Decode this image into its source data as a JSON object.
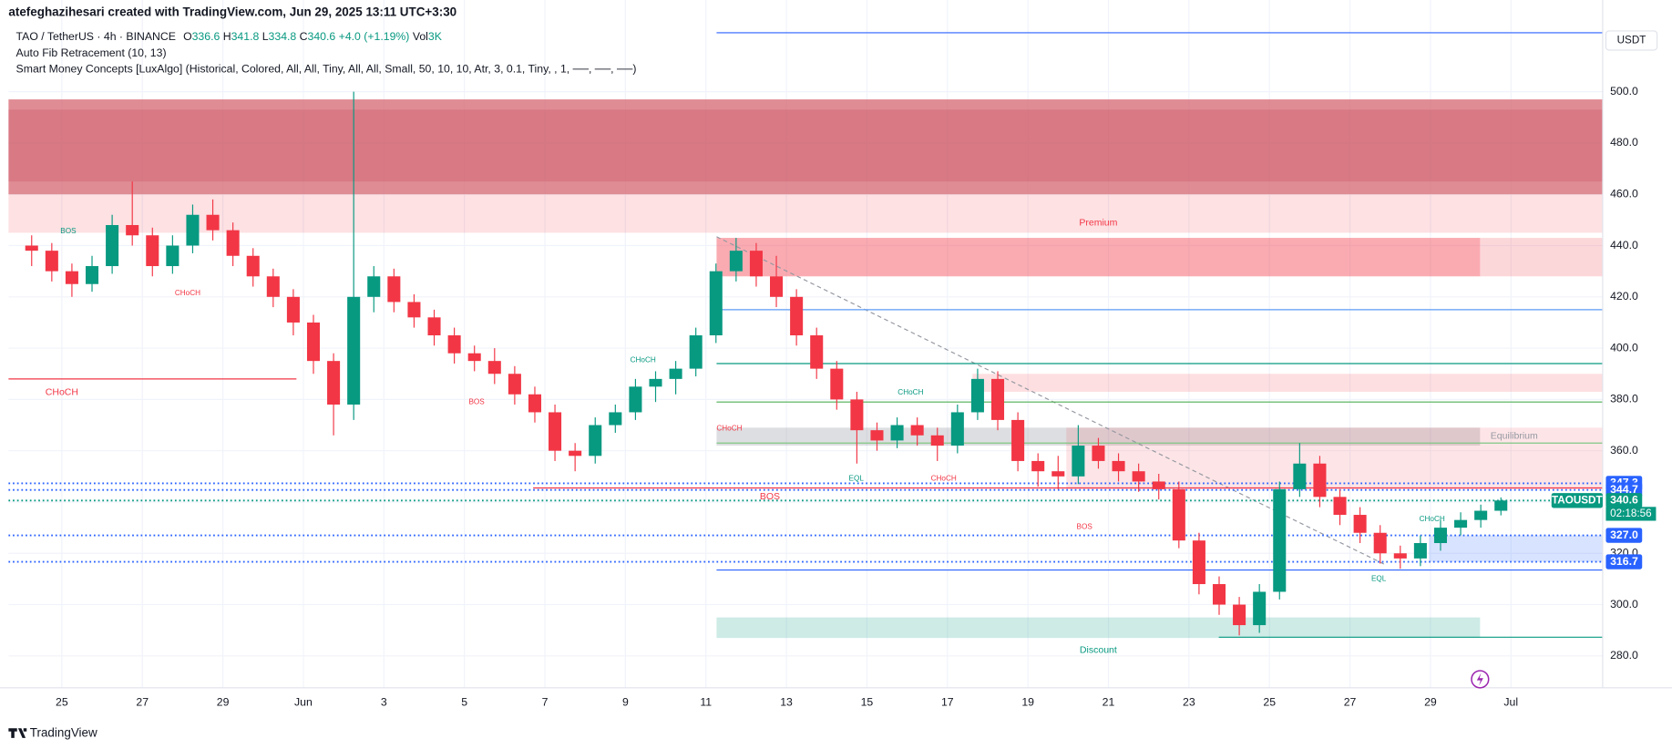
{
  "chart_data": {
    "type": "candlestick",
    "credit": "atefeghazihesari created with TradingView.com, Jun 29, 2025 13:11 UTC+3:30",
    "symbol": "TAO / TetherUS · 4h · BINANCE",
    "ohlc_header": {
      "o_label": "O",
      "o": "336.6",
      "h_label": "H",
      "h": "341.8",
      "l_label": "L",
      "l": "334.8",
      "c_label": "C",
      "c": "340.6",
      "change": "+4.0 (+1.19%)",
      "vol_label": "Vol",
      "vol": "3K"
    },
    "indicators": [
      "Auto Fib Retracement (10, 13)",
      "Smart Money Concepts [LuxAlgo] (Historical, Colored, All, All, Tiny, All, All, Small, 50, 10, 10, Atr, 3, 0.1, Tiny, , 1, ──, ──, ──)"
    ],
    "currency": "USDT",
    "branding": "TradingView",
    "up_color": "#089981",
    "down_color": "#f23645",
    "ylim": [
      270,
      530
    ],
    "yticks": [
      {
        "value": 280,
        "label": "280.0"
      },
      {
        "value": 300,
        "label": "300.0"
      },
      {
        "value": 320,
        "label": "320.0"
      },
      {
        "value": 340,
        "label": "340.0"
      },
      {
        "value": 360,
        "label": "360.0"
      },
      {
        "value": 380,
        "label": "380.0"
      },
      {
        "value": 400,
        "label": "400.0"
      },
      {
        "value": 420,
        "label": "420.0"
      },
      {
        "value": 440,
        "label": "440.0"
      },
      {
        "value": 460,
        "label": "460.0"
      },
      {
        "value": 480,
        "label": "480.0"
      },
      {
        "value": 500,
        "label": "500.0"
      }
    ],
    "x_labels": [
      "25",
      "27",
      "29",
      "Jun",
      "3",
      "5",
      "7",
      "9",
      "11",
      "13",
      "15",
      "17",
      "19",
      "21",
      "23",
      "25",
      "27",
      "29",
      "Jul"
    ],
    "grid": true,
    "open": [
      440,
      438,
      430,
      425,
      432,
      448,
      444,
      432,
      440,
      452,
      446,
      436,
      428,
      420,
      410,
      395,
      378,
      420,
      428,
      418,
      412,
      405,
      398,
      395,
      390,
      382,
      375,
      360,
      358,
      370,
      375,
      385,
      388,
      392,
      405,
      430,
      438,
      428,
      420,
      405,
      392,
      380,
      368,
      364,
      370,
      366,
      362,
      375,
      388,
      372,
      356,
      352,
      350,
      362,
      356,
      352,
      348,
      345,
      325,
      308,
      300,
      292,
      305,
      345,
      355,
      342,
      335,
      328,
      320,
      318,
      324,
      330,
      333,
      336.6
    ],
    "high": [
      444,
      441,
      433,
      436,
      452,
      465,
      447,
      444,
      456,
      458,
      449,
      439,
      431,
      423,
      413,
      398,
      500,
      432,
      431,
      421,
      415,
      408,
      401,
      400,
      393,
      385,
      378,
      363,
      373,
      378,
      388,
      391,
      395,
      408,
      433,
      443,
      441,
      436,
      423,
      408,
      395,
      383,
      371,
      373,
      373,
      369,
      378,
      392,
      391,
      375,
      359,
      358,
      370,
      365,
      359,
      355,
      351,
      348,
      328,
      311,
      303,
      308,
      348,
      363,
      358,
      345,
      338,
      331,
      323,
      327,
      333,
      336,
      339,
      341.8
    ],
    "low": [
      432,
      426,
      420,
      422,
      429,
      440,
      428,
      429,
      437,
      442,
      432,
      424,
      416,
      405,
      390,
      366,
      372,
      414,
      414,
      408,
      401,
      394,
      391,
      386,
      378,
      371,
      356,
      352,
      355,
      367,
      372,
      379,
      382,
      389,
      402,
      426,
      424,
      416,
      401,
      388,
      376,
      355,
      360,
      361,
      362,
      356,
      359,
      372,
      368,
      352,
      346,
      345,
      347,
      353,
      348,
      344,
      341,
      322,
      304,
      296,
      288,
      289,
      302,
      342,
      338,
      331,
      324,
      316,
      314,
      315,
      321,
      327,
      330,
      334.8
    ],
    "close": [
      438,
      430,
      425,
      432,
      448,
      444,
      432,
      440,
      452,
      446,
      436,
      428,
      420,
      410,
      395,
      378,
      420,
      428,
      418,
      412,
      405,
      398,
      395,
      390,
      382,
      375,
      360,
      358,
      370,
      375,
      385,
      388,
      392,
      405,
      430,
      438,
      428,
      420,
      405,
      392,
      380,
      368,
      364,
      370,
      366,
      362,
      375,
      388,
      372,
      356,
      352,
      350,
      362,
      356,
      352,
      348,
      345,
      325,
      308,
      300,
      292,
      305,
      345,
      355,
      342,
      335,
      328,
      320,
      318,
      324,
      330,
      333,
      336.6,
      340.6
    ],
    "zones": [
      {
        "top": 497,
        "bottom": 460,
        "color": "rgba(214,102,112,0.75)"
      },
      {
        "top": 493,
        "bottom": 465,
        "color": "rgba(200,80,95,0.3)"
      },
      {
        "top": 460,
        "bottom": 445,
        "color": "rgba(242,54,69,0.15)"
      },
      {
        "top": 443,
        "bottom": 428,
        "color": "rgba(242,54,69,0.42)"
      },
      {
        "top": 443,
        "bottom": 428,
        "color": "rgba(242,54,69,0.2)"
      },
      {
        "top": 390,
        "bottom": 383,
        "color": "rgba(242,54,69,0.16)"
      },
      {
        "top": 369,
        "bottom": 362,
        "color": "rgba(120,123,134,0.25)"
      },
      {
        "top": 369,
        "bottom": 345,
        "color": "rgba(242,54,69,0.13)"
      },
      {
        "top": 327,
        "bottom": 316.7,
        "color": "rgba(41,98,255,0.18)"
      },
      {
        "top": 295,
        "bottom": 287,
        "color": "rgba(8,153,129,0.2)"
      }
    ],
    "levels": [
      {
        "value": 523,
        "color": "#2962ff"
      },
      {
        "value": 415,
        "color": "#5b9cf6"
      },
      {
        "value": 394,
        "color": "#089981"
      },
      {
        "value": 379,
        "color": "#4caf50"
      },
      {
        "value": 363,
        "color": "#81c784"
      },
      {
        "value": 388,
        "color": "#f23645"
      },
      {
        "value": 345.5,
        "color": "#f23645"
      },
      {
        "value": 313.5,
        "color": "#2962ff"
      },
      {
        "value": 287.3,
        "color": "#089981"
      }
    ],
    "markers": [
      {
        "value": 347.3,
        "label": "347.3",
        "color": "#2962ff"
      },
      {
        "value": 344.7,
        "label": "344.7",
        "color": "#2962ff"
      },
      {
        "value": 340.6,
        "label": "340.6",
        "color": "#089981"
      },
      {
        "value": 327,
        "label": "327.0",
        "color": "#2962ff"
      },
      {
        "value": 316.7,
        "label": "316.7",
        "color": "#2962ff"
      }
    ],
    "last_price_name": "TAOUSDT",
    "countdown": "02:18:56",
    "annotations": [
      {
        "text": "Premium",
        "color": "#f23645"
      },
      {
        "text": "Equilibrium",
        "color": "#9598a1"
      },
      {
        "text": "Discount",
        "color": "#089981"
      },
      {
        "text": "BOS",
        "color": "#089981"
      },
      {
        "text": "CHoCH",
        "color": "#f23645"
      },
      {
        "text": "CHoCH",
        "color": "#f23645"
      },
      {
        "text": "BOS",
        "color": "#f23645"
      },
      {
        "text": "CHoCH",
        "color": "#089981"
      },
      {
        "text": "CHoCH",
        "color": "#f23645"
      },
      {
        "text": "CHoCH",
        "color": "#089981"
      },
      {
        "text": "EQL",
        "color": "#089981"
      },
      {
        "text": "CHoCH",
        "color": "#f23645"
      },
      {
        "text": "BOS",
        "color": "#f23645"
      },
      {
        "text": "BOS",
        "color": "#f23645"
      },
      {
        "text": "CHoCH",
        "color": "#089981"
      },
      {
        "text": "EQL",
        "color": "#089981"
      }
    ]
  }
}
